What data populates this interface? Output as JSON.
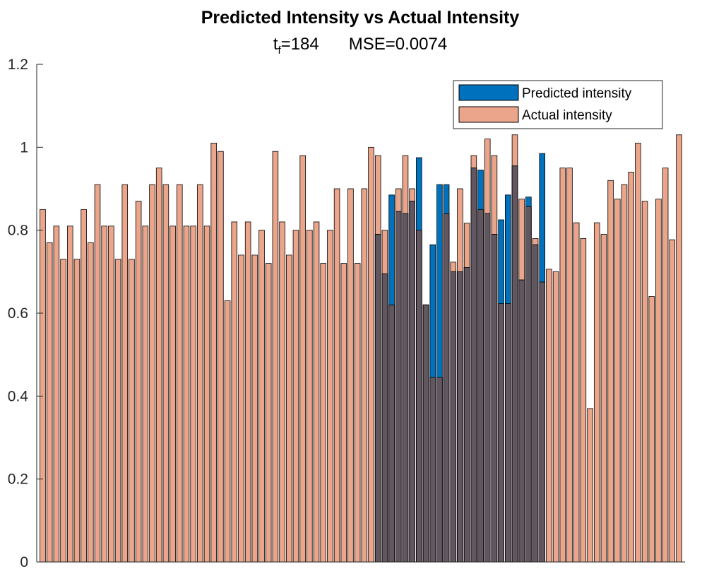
{
  "chart_data": {
    "type": "bar",
    "title": "Predicted Intensity vs Actual Intensity",
    "subtitle": {
      "t_base": "t",
      "t_sub": "f",
      "t_value": "=184",
      "mse": "MSE=0.0074"
    },
    "xlabel": "",
    "ylabel": "",
    "ylim": [
      0,
      1.2
    ],
    "yticks": [
      {
        "value": 0,
        "label": "0"
      },
      {
        "value": 0.2,
        "label": "0.2"
      },
      {
        "value": 0.4,
        "label": "0.4"
      },
      {
        "value": 0.6,
        "label": "0.6"
      },
      {
        "value": 0.8,
        "label": "0.8"
      },
      {
        "value": 1.0,
        "label": "1"
      },
      {
        "value": 1.2,
        "label": "1.2"
      }
    ],
    "grid": false,
    "legend_position": "top-right",
    "colors": {
      "predicted": "#0072bd",
      "actual": "#eaa58a",
      "overlap": "#625760",
      "edge": "#000000",
      "axis": "#262626"
    },
    "series": [
      {
        "name": "Predicted intensity",
        "start_index": 49,
        "values": [
          0.79,
          0.695,
          0.885,
          0.845,
          0.84,
          0.87,
          0.975,
          0.62,
          0.765,
          0.91,
          0.91,
          0.7,
          0.7,
          0.71,
          0.95,
          0.945,
          0.84,
          0.79,
          0.825,
          0.885,
          0.955,
          0.68,
          0.88,
          0.765,
          0.985
        ]
      },
      {
        "name": "Actual intensity",
        "values": [
          0.85,
          0.77,
          0.81,
          0.73,
          0.81,
          0.73,
          0.85,
          0.77,
          0.91,
          0.81,
          0.81,
          0.73,
          0.91,
          0.73,
          0.87,
          0.81,
          0.91,
          0.95,
          0.91,
          0.81,
          0.91,
          0.81,
          0.81,
          0.91,
          0.81,
          1.01,
          0.99,
          0.63,
          0.82,
          0.74,
          0.82,
          0.74,
          0.8,
          0.72,
          0.99,
          0.82,
          0.74,
          0.8,
          0.98,
          0.8,
          0.82,
          0.72,
          0.8,
          0.9,
          0.72,
          0.9,
          0.72,
          0.9,
          1.0,
          0.98,
          0.8,
          0.62,
          0.9,
          0.98,
          0.9,
          0.8,
          0.62,
          0.445,
          0.445,
          0.84,
          0.723,
          0.9,
          0.817,
          0.98,
          0.85,
          1.02,
          0.98,
          0.623,
          0.623,
          1.03,
          0.875,
          0.857,
          0.78,
          0.675,
          0.706,
          0.7,
          0.95,
          0.95,
          0.818,
          0.78,
          0.37,
          0.818,
          0.79,
          0.92,
          0.875,
          0.91,
          0.94,
          1.01,
          0.87,
          0.64,
          0.875,
          0.95,
          0.777,
          1.03
        ]
      }
    ]
  }
}
